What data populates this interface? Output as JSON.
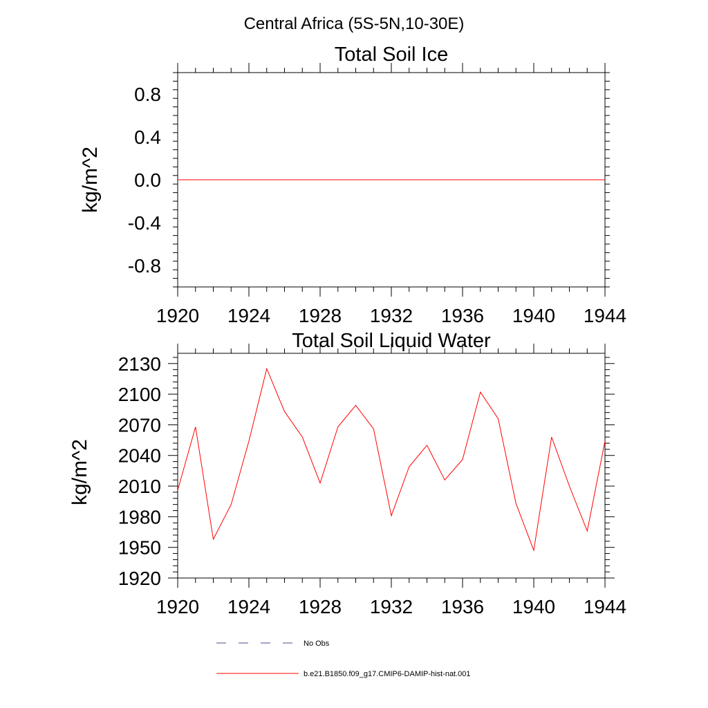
{
  "figure_title": "Central Africa (5S-5N,10-30E)",
  "colors": {
    "series": "#ff0000",
    "obs": "#4a4a8a",
    "axis": "#000000"
  },
  "chart_data": [
    {
      "type": "line",
      "title": "Total Soil Ice",
      "xlabel": "",
      "ylabel": "kg/m^2",
      "xlim": [
        1920,
        1944
      ],
      "ylim": [
        -1.0,
        1.0
      ],
      "xticks": [
        "1920",
        "1924",
        "1928",
        "1932",
        "1936",
        "1940",
        "1944"
      ],
      "yticks": [
        "0.8",
        "0.4",
        "0.0",
        "-0.4",
        "-0.8"
      ],
      "ytick_values": [
        0.8,
        0.4,
        0.0,
        -0.4,
        -0.8
      ],
      "series": [
        {
          "name": "b.e21.B1850.f09_g17.CMIP6-DAMIP-hist-nat.001",
          "x": [
            1920,
            1921,
            1922,
            1923,
            1924,
            1925,
            1926,
            1927,
            1928,
            1929,
            1930,
            1931,
            1932,
            1933,
            1934,
            1935,
            1936,
            1937,
            1938,
            1939,
            1940,
            1941,
            1942,
            1943,
            1944
          ],
          "values": [
            0,
            0,
            0,
            0,
            0,
            0,
            0,
            0,
            0,
            0,
            0,
            0,
            0,
            0,
            0,
            0,
            0,
            0,
            0,
            0,
            0,
            0,
            0,
            0,
            0
          ]
        }
      ]
    },
    {
      "type": "line",
      "title": "Total Soil Liquid Water",
      "xlabel": "",
      "ylabel": "kg/m^2",
      "xlim": [
        1920,
        1944
      ],
      "ylim": [
        1920,
        2140
      ],
      "xticks": [
        "1920",
        "1924",
        "1928",
        "1932",
        "1936",
        "1940",
        "1944"
      ],
      "yticks": [
        "2130",
        "2100",
        "2070",
        "2040",
        "2010",
        "1980",
        "1950",
        "1920"
      ],
      "ytick_values": [
        2130,
        2100,
        2070,
        2040,
        2010,
        1980,
        1950,
        1920
      ],
      "series": [
        {
          "name": "b.e21.B1850.f09_g17.CMIP6-DAMIP-hist-nat.001",
          "x": [
            1920,
            1921,
            1922,
            1923,
            1924,
            1925,
            1926,
            1927,
            1928,
            1929,
            1930,
            1931,
            1932,
            1933,
            1934,
            1935,
            1936,
            1937,
            1938,
            1939,
            1940,
            1941,
            1942,
            1943,
            1944
          ],
          "values": [
            2006,
            2068,
            1958,
            1992,
            2054,
            2125,
            2083,
            2058,
            2013,
            2068,
            2089,
            2066,
            1981,
            2029,
            2050,
            2016,
            2036,
            2102,
            2076,
            1993,
            1947,
            2058,
            2010,
            1966,
            2054
          ]
        }
      ]
    }
  ],
  "legend": {
    "entries": [
      {
        "label": "No Obs",
        "style": "dashed"
      },
      {
        "label": "b.e21.B1850.f09_g17.CMIP6-DAMIP-hist-nat.001",
        "style": "solid"
      }
    ]
  }
}
